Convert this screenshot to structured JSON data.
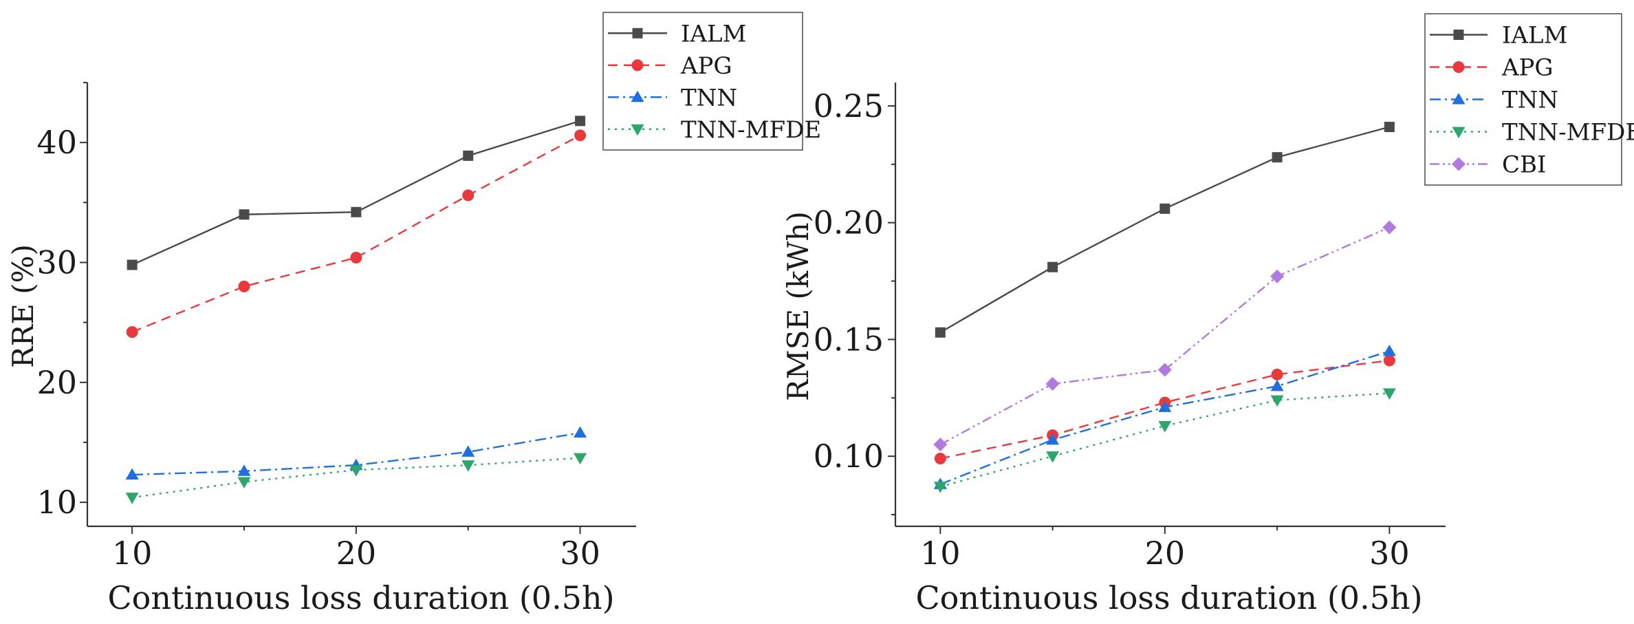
{
  "chart_data": [
    {
      "type": "line",
      "title": "",
      "xlabel": "Continuous loss duration (0.5h)",
      "ylabel": "RRE (%)",
      "xlim": [
        8,
        32.5
      ],
      "ylim": [
        8,
        45
      ],
      "xticks": [
        10,
        20,
        30
      ],
      "yticks": [
        10,
        20,
        30,
        40
      ],
      "x": [
        10,
        15,
        20,
        25,
        30
      ],
      "legend_position": "top-right",
      "grid": false,
      "series": [
        {
          "name": "IALM",
          "color": "#4a4a4a",
          "dash": "solid",
          "marker": "square",
          "values": [
            29.8,
            34.0,
            34.2,
            38.9,
            41.8
          ]
        },
        {
          "name": "APG",
          "color": "#e8393d",
          "dash": "dashed",
          "marker": "circle",
          "values": [
            24.2,
            28.0,
            30.4,
            35.6,
            40.6
          ]
        },
        {
          "name": "TNN",
          "color": "#1f6fe0",
          "dash": "dashdot",
          "marker": "triangle-up",
          "values": [
            12.3,
            12.6,
            13.1,
            14.2,
            15.8
          ]
        },
        {
          "name": "TNN-MFDE",
          "color": "#2ca66a",
          "dash": "dotted",
          "marker": "triangle-down",
          "values": [
            10.4,
            11.7,
            12.7,
            13.1,
            13.7
          ]
        }
      ]
    },
    {
      "type": "line",
      "title": "",
      "xlabel": "Continuous loss duration (0.5h)",
      "ylabel": "RMSE (kWh)",
      "xlim": [
        8,
        32.5
      ],
      "ylim": [
        0.07,
        0.26
      ],
      "xticks": [
        10,
        20,
        30
      ],
      "yticks": [
        0.1,
        0.15,
        0.2,
        0.25
      ],
      "ytick_labels": [
        "0.10",
        "0.15",
        "0.20",
        "0.25"
      ],
      "x": [
        10,
        15,
        20,
        25,
        30
      ],
      "legend_position": "top-right",
      "grid": false,
      "series": [
        {
          "name": "IALM",
          "color": "#4a4a4a",
          "dash": "solid",
          "marker": "square",
          "values": [
            0.153,
            0.181,
            0.206,
            0.228,
            0.241
          ]
        },
        {
          "name": "APG",
          "color": "#e8393d",
          "dash": "dashed",
          "marker": "circle",
          "values": [
            0.099,
            0.109,
            0.123,
            0.135,
            0.141
          ]
        },
        {
          "name": "TNN",
          "color": "#1f6fe0",
          "dash": "dashdot",
          "marker": "triangle-up",
          "values": [
            0.088,
            0.107,
            0.121,
            0.13,
            0.145
          ]
        },
        {
          "name": "TNN-MFDE",
          "color": "#2ca66a",
          "dash": "dotted",
          "marker": "triangle-down",
          "values": [
            0.087,
            0.1,
            0.113,
            0.124,
            0.127
          ]
        },
        {
          "name": "CBI",
          "color": "#b07ae0",
          "dash": "dashdotdot",
          "marker": "diamond",
          "values": [
            0.105,
            0.131,
            0.137,
            0.177,
            0.198
          ]
        }
      ]
    }
  ]
}
